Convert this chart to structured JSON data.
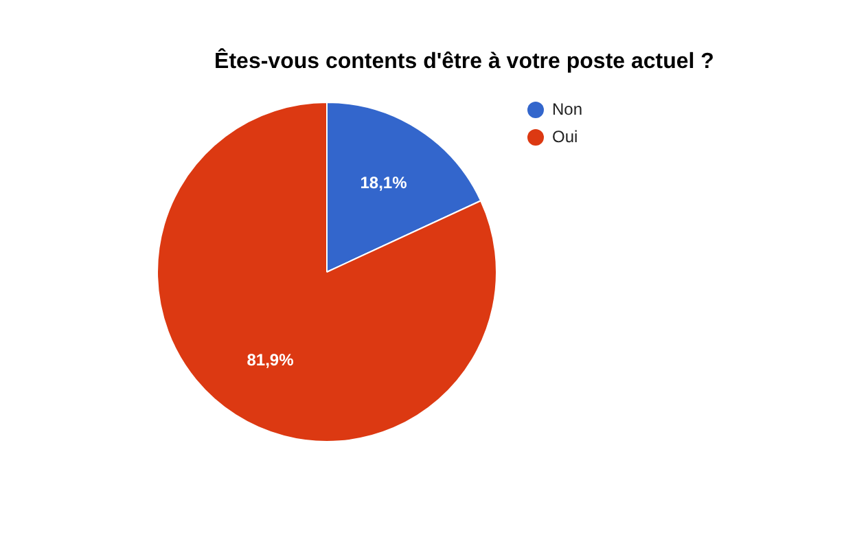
{
  "chart_data": {
    "type": "pie",
    "title": "Êtes-vous contents d'être à votre poste actuel ?",
    "categories": [
      "Non",
      "Oui"
    ],
    "values": [
      18.1,
      81.9
    ],
    "colors": [
      "#3366cc",
      "#dc3912"
    ],
    "value_labels": [
      "18,1%",
      "81,9%"
    ],
    "legend": "top right"
  }
}
